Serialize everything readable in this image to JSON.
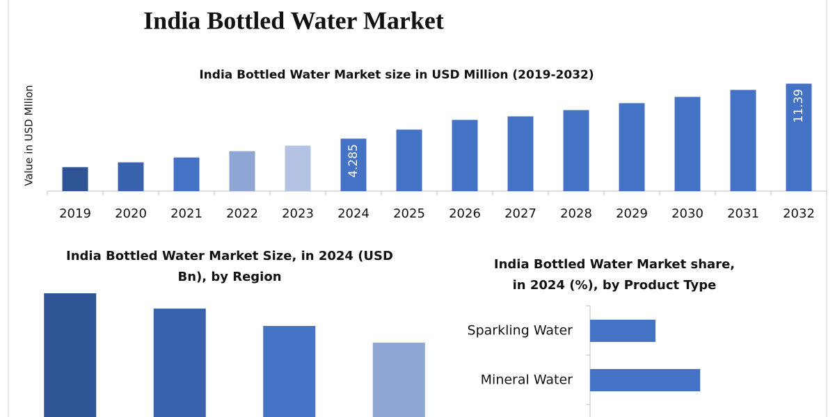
{
  "title": "India Bottled Water Market",
  "chart_data": [
    {
      "type": "bar",
      "title": "India Bottled Water Market size in USD Million (2019-2032)",
      "y_label": "Value in USD Mllion",
      "categories": [
        "2019",
        "2020",
        "2021",
        "2022",
        "2023",
        "2024",
        "2025",
        "2026",
        "2027",
        "2028",
        "2029",
        "2030",
        "2031",
        "2032"
      ],
      "values": [
        0.6,
        1.22,
        1.85,
        2.66,
        3.38,
        4.285,
        5.45,
        6.71,
        7.16,
        7.97,
        8.87,
        9.68,
        10.58,
        11.39
      ],
      "value_labels": [
        null,
        null,
        null,
        null,
        null,
        "4.285",
        null,
        null,
        null,
        null,
        null,
        null,
        null,
        "11.39"
      ],
      "colors": [
        "#2f5597",
        "#3a62ad",
        "#4472c4",
        "#8fa5d4",
        "#b4c3e3",
        "#4472c4",
        "#4472c4",
        "#4472c4",
        "#4472c4",
        "#4472c4",
        "#4472c4",
        "#4472c4",
        "#4472c4",
        "#4472c4"
      ],
      "ylim": [
        -2.5,
        12.5
      ]
    },
    {
      "type": "bar",
      "title": "India Bottled Water Market Size, in 2024 (USD Bn), by Region",
      "categories": [
        null,
        null,
        null,
        null
      ],
      "values": [
        178,
        156,
        131,
        107
      ],
      "colors": [
        "#2f5597",
        "#3a62ad",
        "#4472c4",
        "#8fa5d4"
      ],
      "ylim": [
        0,
        180
      ]
    },
    {
      "type": "barh",
      "title": "India Bottled Water Market share, in 2024 (%), by Product Type",
      "categories": [
        "Sparkling Water",
        "Mineral Water"
      ],
      "values": [
        17,
        28.6
      ],
      "color": "#4472c4",
      "xlim": [
        0,
        60
      ]
    }
  ]
}
